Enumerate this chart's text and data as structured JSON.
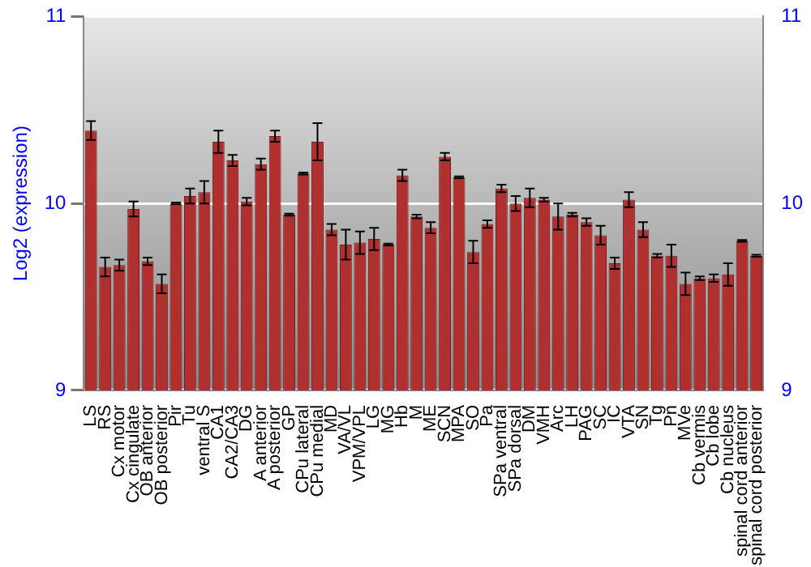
{
  "chart_data": {
    "type": "bar",
    "ylabel": "Log2 (expression)",
    "categories": [
      "LS",
      "RS",
      "Cx motor",
      "Cx cingulate",
      "OB anterior",
      "OB posterior",
      "Pir",
      "Tu",
      "ventral S",
      "CA1",
      "CA2/CA3",
      "DG",
      "A anterior",
      "A posterior",
      "GP",
      "CPu lateral",
      "CPu medial",
      "MD",
      "VA/VL",
      "VPM/VPL",
      "LG",
      "MG",
      "Hb",
      "M",
      "ME",
      "SCN",
      "MPA",
      "SO",
      "Pa",
      "SPa ventral",
      "SPa dorsal",
      "DM",
      "VMH",
      "Arc",
      "LH",
      "PAG",
      "SC",
      "IC",
      "VTA",
      "SN",
      "Tg",
      "Pn",
      "MVe",
      "Cb vermis",
      "Cb lobe",
      "Cb nucleus",
      "spinal cord anterior",
      "spinal cord posterior"
    ],
    "values": [
      10.39,
      9.66,
      9.67,
      9.97,
      9.69,
      9.57,
      10.0,
      10.04,
      10.06,
      10.33,
      10.23,
      10.01,
      10.21,
      10.36,
      9.94,
      10.16,
      10.33,
      9.86,
      9.78,
      9.79,
      9.81,
      9.78,
      10.15,
      9.93,
      9.87,
      10.25,
      10.14,
      9.74,
      9.89,
      10.08,
      10.0,
      10.03,
      10.02,
      9.93,
      9.94,
      9.9,
      9.83,
      9.68,
      10.02,
      9.86,
      9.72,
      9.72,
      9.57,
      9.6,
      9.6,
      9.62,
      9.8,
      9.72
    ],
    "errors": [
      0.05,
      0.05,
      0.03,
      0.04,
      0.02,
      0.05,
      0.005,
      0.04,
      0.06,
      0.06,
      0.03,
      0.02,
      0.03,
      0.03,
      0.005,
      0.005,
      0.1,
      0.03,
      0.08,
      0.06,
      0.06,
      0.005,
      0.03,
      0.01,
      0.03,
      0.02,
      0.005,
      0.06,
      0.02,
      0.02,
      0.04,
      0.05,
      0.01,
      0.07,
      0.01,
      0.02,
      0.05,
      0.03,
      0.04,
      0.04,
      0.01,
      0.06,
      0.06,
      0.01,
      0.02,
      0.06,
      0.005,
      0.005
    ],
    "color": "#b03030",
    "ylim": [
      9,
      11
    ],
    "yticks": [
      9,
      10,
      11
    ],
    "y2lim": [
      9,
      11
    ],
    "y2ticks": [
      9,
      10,
      11
    ],
    "grid": "y",
    "legend": false
  }
}
